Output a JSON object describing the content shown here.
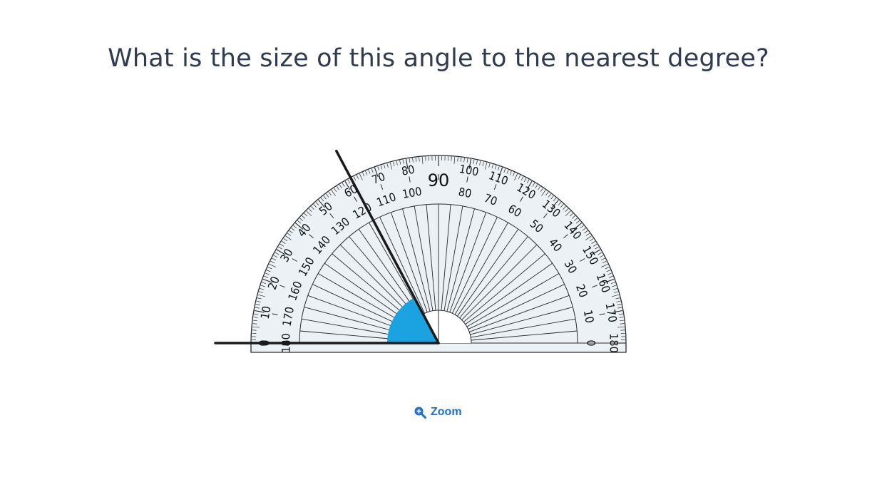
{
  "question": {
    "text": "What is the size of this angle to the nearest degree?"
  },
  "protractor": {
    "outer_scale_labels": [
      "0",
      "10",
      "20",
      "30",
      "40",
      "50",
      "60",
      "70",
      "80",
      "90",
      "100",
      "110",
      "120",
      "130",
      "140",
      "150",
      "160",
      "170",
      "180"
    ],
    "inner_scale_labels": [
      "0",
      "10",
      "20",
      "30",
      "40",
      "50",
      "60",
      "70",
      "80",
      "90",
      "100",
      "110",
      "120",
      "130",
      "140",
      "150",
      "160",
      "170",
      "180"
    ],
    "center_label": "90",
    "arm_angle_degrees": 118,
    "colors": {
      "body_fill": "#ecf1f6",
      "outline": "#2a2a2a",
      "angle_fill": "#1aa3e0",
      "arm": "#1a1a1a"
    }
  },
  "zoom": {
    "label": "Zoom",
    "icon": "zoom-in-icon",
    "color": "#1f6fd1"
  }
}
